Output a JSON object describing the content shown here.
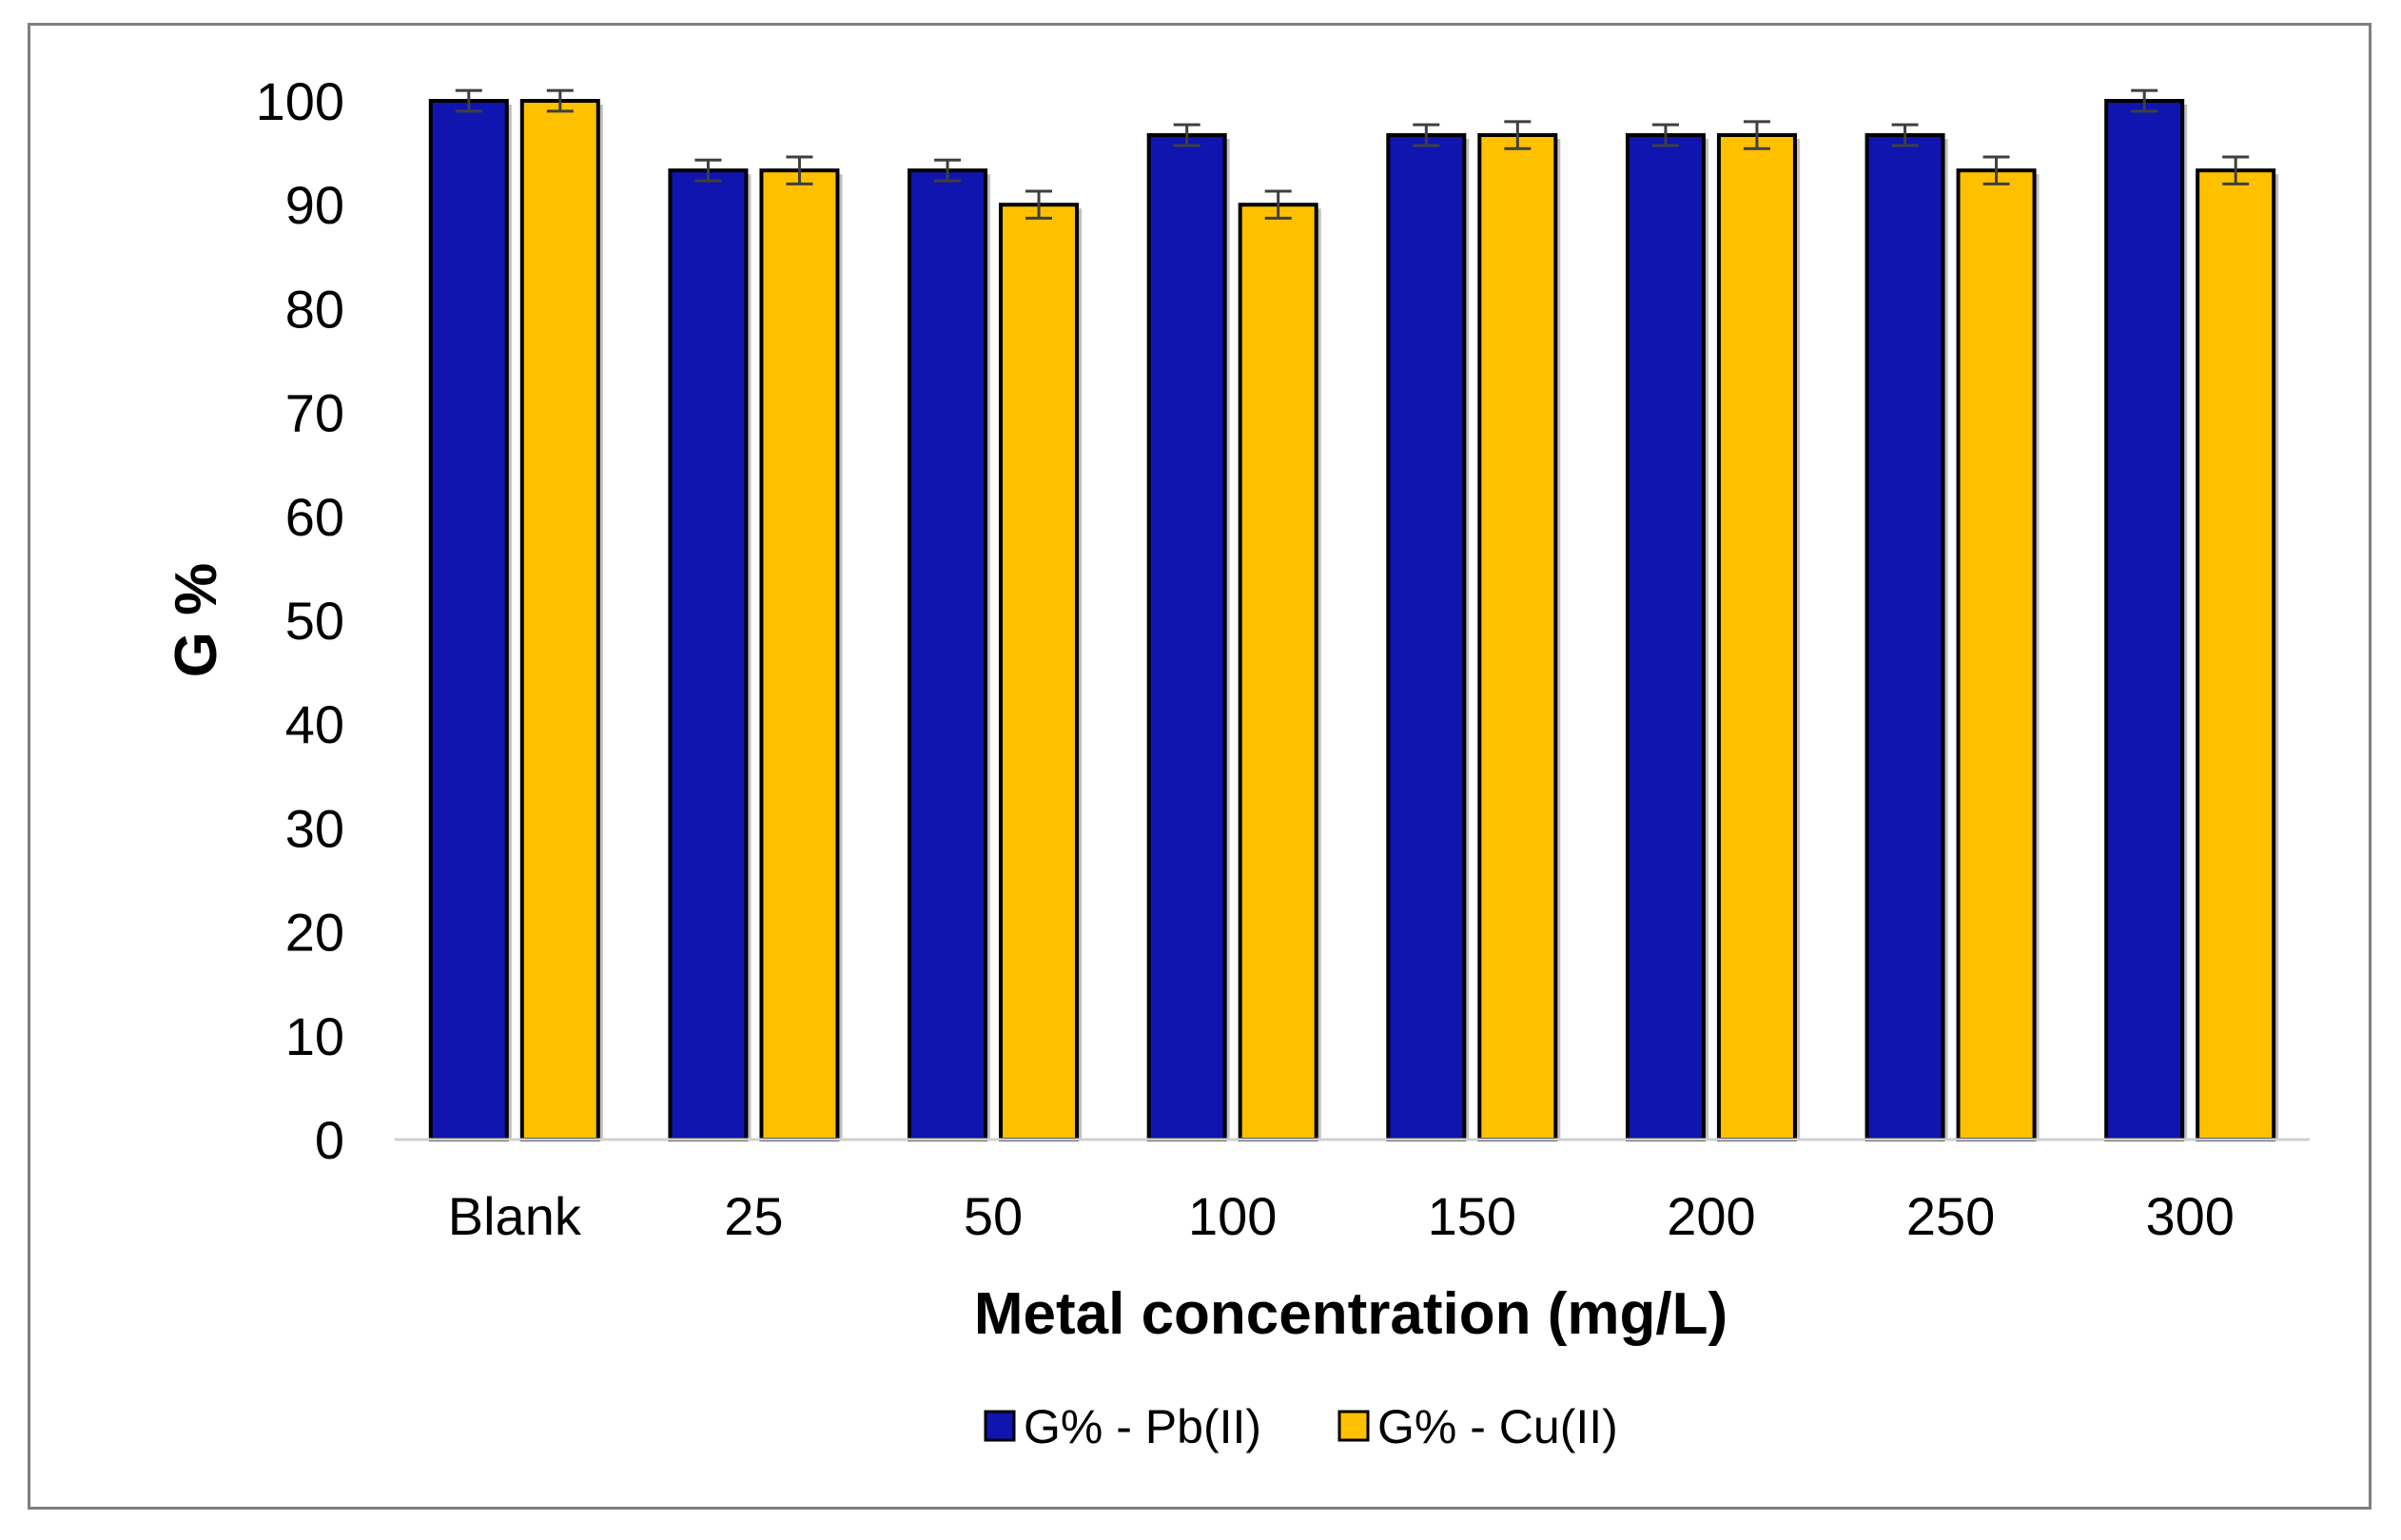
{
  "chart_data": {
    "type": "bar",
    "categories": [
      "Blank",
      "25",
      "50",
      "100",
      "150",
      "200",
      "250",
      "300"
    ],
    "series": [
      {
        "name": "G% - Pb(II)",
        "color": "#0f15ae",
        "values": [
          100,
          93.3,
          93.3,
          96.7,
          96.7,
          96.7,
          96.7,
          100
        ],
        "errors": [
          1,
          1,
          1,
          1,
          1,
          1,
          1,
          1
        ]
      },
      {
        "name": "G% - Cu(II)",
        "color": "#ffc000",
        "values": [
          100,
          93.3,
          90,
          90,
          96.7,
          96.7,
          93.3,
          93.3
        ],
        "errors": [
          1,
          1.3,
          1.3,
          1.3,
          1.3,
          1.3,
          1.3,
          1.3
        ]
      }
    ],
    "xlabel": "Metal concentration (mg/L)",
    "ylabel": "G %",
    "ylim": [
      0,
      100
    ],
    "yticks": [
      "0",
      "10",
      "20",
      "30",
      "40",
      "50",
      "60",
      "70",
      "80",
      "90",
      "100"
    ],
    "grid": false,
    "legend_position": "bottom"
  }
}
